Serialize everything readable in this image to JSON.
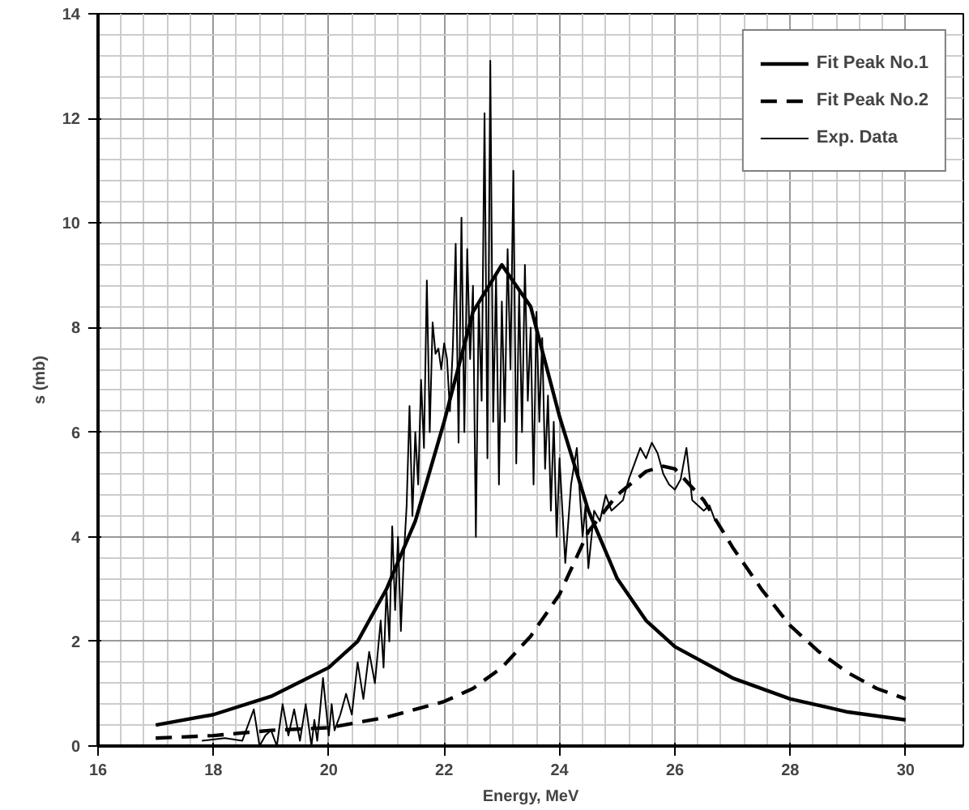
{
  "chart_data": {
    "type": "line",
    "xlabel": "Energy, MeV",
    "ylabel": "s (mb)",
    "xlim": [
      16,
      31
    ],
    "ylim": [
      0,
      14
    ],
    "xticks": [
      16,
      18,
      20,
      22,
      24,
      26,
      28,
      30
    ],
    "yticks": [
      0,
      2,
      4,
      6,
      8,
      10,
      12,
      14
    ],
    "grid": true,
    "legend": "top right",
    "marker": "none",
    "series": [
      {
        "name": "Fit Peak No.1",
        "color": "#000000",
        "line_style": "solid",
        "x": [
          17,
          18,
          19,
          20,
          20.5,
          21,
          21.5,
          22,
          22.5,
          23,
          23.5,
          24,
          24.5,
          25,
          25.5,
          26,
          27,
          28,
          29,
          30
        ],
        "values": [
          0.4,
          0.6,
          0.95,
          1.5,
          2.0,
          3.0,
          4.3,
          6.2,
          8.3,
          9.2,
          8.4,
          6.3,
          4.5,
          3.2,
          2.4,
          1.9,
          1.3,
          0.9,
          0.65,
          0.5
        ]
      },
      {
        "name": "Fit Peak No.2",
        "color": "#000000",
        "line_style": "dashed",
        "x": [
          17,
          18,
          19,
          20,
          21,
          22,
          22.5,
          23,
          23.5,
          24,
          24.5,
          25,
          25.5,
          25.8,
          26,
          26.5,
          27,
          27.5,
          28,
          28.5,
          29,
          29.5,
          30
        ],
        "values": [
          0.15,
          0.2,
          0.3,
          0.35,
          0.55,
          0.85,
          1.1,
          1.5,
          2.1,
          2.9,
          4.1,
          4.8,
          5.25,
          5.35,
          5.3,
          4.7,
          3.8,
          3.0,
          2.3,
          1.8,
          1.4,
          1.1,
          0.9
        ]
      },
      {
        "name": "Exp. Data",
        "color": "#000000",
        "line_style": "solid",
        "x": [
          17.8,
          18.2,
          18.5,
          18.7,
          18.8,
          18.9,
          19.0,
          19.1,
          19.2,
          19.3,
          19.4,
          19.5,
          19.6,
          19.7,
          19.75,
          19.8,
          19.9,
          20.0,
          20.05,
          20.1,
          20.2,
          20.3,
          20.4,
          20.5,
          20.6,
          20.7,
          20.8,
          20.9,
          20.95,
          21.0,
          21.05,
          21.1,
          21.15,
          21.2,
          21.25,
          21.3,
          21.35,
          21.4,
          21.45,
          21.5,
          21.55,
          21.6,
          21.65,
          21.7,
          21.75,
          21.8,
          21.85,
          21.9,
          21.95,
          22.0,
          22.05,
          22.1,
          22.15,
          22.2,
          22.25,
          22.3,
          22.35,
          22.4,
          22.45,
          22.5,
          22.55,
          22.6,
          22.65,
          22.7,
          22.75,
          22.8,
          22.85,
          22.9,
          22.95,
          23.0,
          23.05,
          23.1,
          23.15,
          23.2,
          23.25,
          23.3,
          23.35,
          23.4,
          23.45,
          23.5,
          23.55,
          23.6,
          23.65,
          23.7,
          23.75,
          23.8,
          23.85,
          23.9,
          23.95,
          24.0,
          24.1,
          24.2,
          24.3,
          24.4,
          24.45,
          24.5,
          24.6,
          24.7,
          24.8,
          24.9,
          25.0,
          25.1,
          25.2,
          25.3,
          25.4,
          25.5,
          25.6,
          25.7,
          25.8,
          25.9,
          26.0,
          26.1,
          26.2,
          26.3,
          26.4,
          26.5,
          26.6,
          26.7
        ],
        "values": [
          0.1,
          0.15,
          0.1,
          0.7,
          0.0,
          0.2,
          0.3,
          0.0,
          0.8,
          0.2,
          0.7,
          0.1,
          0.8,
          0.0,
          0.5,
          0.1,
          1.3,
          0.2,
          0.8,
          0.3,
          0.6,
          1.0,
          0.6,
          1.6,
          0.9,
          1.8,
          1.2,
          2.4,
          1.5,
          3.0,
          2.0,
          4.2,
          2.6,
          4.0,
          2.2,
          3.6,
          4.6,
          6.5,
          4.4,
          6.0,
          5.0,
          7.0,
          5.7,
          8.9,
          6.0,
          8.1,
          7.5,
          7.6,
          7.2,
          7.7,
          7.4,
          6.4,
          7.6,
          9.6,
          5.8,
          10.1,
          6.0,
          9.5,
          7.4,
          8.8,
          4.0,
          8.5,
          6.6,
          12.1,
          5.5,
          13.1,
          6.2,
          9.0,
          5.0,
          8.5,
          6.2,
          9.5,
          7.2,
          11.0,
          5.4,
          8.7,
          6.0,
          9.2,
          6.6,
          8.0,
          5.0,
          8.3,
          6.2,
          7.8,
          5.3,
          6.7,
          4.5,
          6.2,
          4.0,
          5.5,
          3.5,
          5.0,
          5.7,
          4.0,
          4.6,
          3.4,
          4.5,
          4.3,
          4.8,
          4.5,
          4.6,
          4.7,
          5.1,
          5.4,
          5.7,
          5.5,
          5.8,
          5.6,
          5.2,
          5.0,
          4.9,
          5.1,
          5.7,
          4.7,
          4.6,
          4.5,
          4.6,
          4.3
        ]
      }
    ]
  }
}
